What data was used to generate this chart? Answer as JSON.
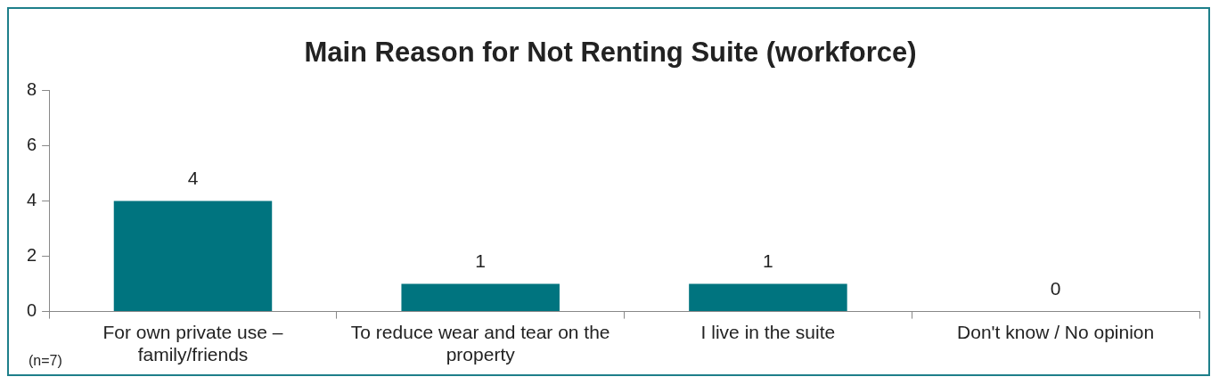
{
  "chart_data": {
    "type": "bar",
    "title": "Main Reason for Not Renting Suite (workforce)",
    "categories": [
      "For own private use – family/friends",
      "To reduce wear and tear on the property",
      "I live in the suite",
      "Don't know / No opinion"
    ],
    "values": [
      4,
      1,
      1,
      0
    ],
    "color": "#00747f",
    "ylim": [
      0,
      8
    ],
    "yticks": [
      0,
      2,
      4,
      6,
      8
    ],
    "grid": false,
    "legend": false,
    "data_labels": true,
    "annotations": [
      "(n=7)"
    ]
  }
}
